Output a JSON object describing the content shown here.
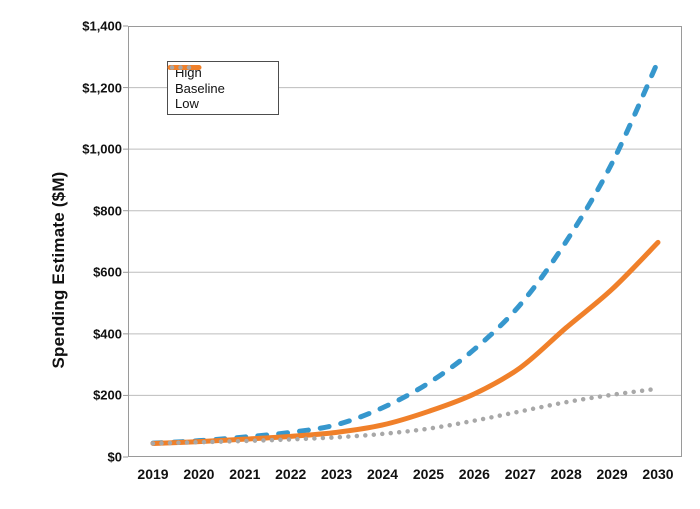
{
  "chart_data": {
    "type": "line",
    "title": "",
    "xlabel": "",
    "ylabel": "Spending Estimate ($M)",
    "x": [
      "2019",
      "2020",
      "2021",
      "2022",
      "2023",
      "2024",
      "2025",
      "2026",
      "2027",
      "2028",
      "2029",
      "2030"
    ],
    "ylim": [
      0,
      1400
    ],
    "ytick_step": 200,
    "yticklabels": [
      "$0",
      "$200",
      "$400",
      "$600",
      "$800",
      "$1,000",
      "$1,200",
      "$1,400"
    ],
    "grid": "horizontal",
    "legend_position": "top-left-inside",
    "series": [
      {
        "name": "High",
        "style": "dashed",
        "color": "#3697cd",
        "values": [
          45,
          53,
          65,
          80,
          105,
          160,
          240,
          350,
          495,
          700,
          955,
          1285
        ]
      },
      {
        "name": "Baseline",
        "style": "solid",
        "color": "#f0802a",
        "values": [
          44,
          50,
          58,
          67,
          80,
          104,
          148,
          205,
          290,
          420,
          545,
          697
        ]
      },
      {
        "name": "Low",
        "style": "dotted",
        "color": "#a8a8a8",
        "values": [
          44,
          48,
          52,
          57,
          64,
          75,
          92,
          118,
          148,
          178,
          202,
          222
        ]
      }
    ],
    "colors": {
      "plot_border": "#9a9a9a",
      "gridline": "#bdbdbd",
      "tick": "#9a9a9a",
      "text": "#111111",
      "background": "#ffffff",
      "legend_border": "#4d4d4d"
    }
  }
}
